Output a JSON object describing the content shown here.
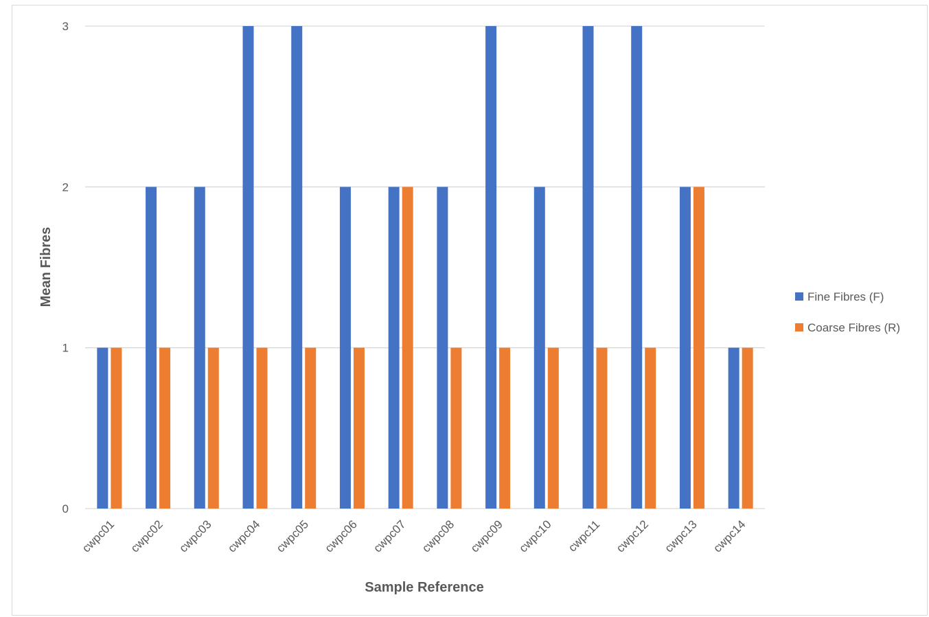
{
  "chart_data": {
    "type": "bar",
    "title": "",
    "xlabel": "Sample Reference",
    "ylabel": "Mean Fibres",
    "ylim": [
      0,
      3
    ],
    "yticks": [
      "0",
      "1",
      "2",
      "3"
    ],
    "grid": true,
    "legend_position": "right",
    "categories": [
      "cwpc01",
      "cwpc02",
      "cwpc03",
      "cwpc04",
      "cwpc05",
      "cwpc06",
      "cwpc07",
      "cwpc08",
      "cwpc09",
      "cwpc10",
      "cwpc11",
      "cwpc12",
      "cwpc13",
      "cwpc14"
    ],
    "series": [
      {
        "name": "Fine Fibres (F)",
        "color": "#4472c4",
        "values": [
          1,
          2,
          2,
          3,
          3,
          2,
          2,
          2,
          3,
          2,
          3,
          3,
          2,
          1
        ]
      },
      {
        "name": "Coarse Fibres (R)",
        "color": "#ed7d31",
        "values": [
          1,
          1,
          1,
          1,
          1,
          1,
          2,
          1,
          1,
          1,
          1,
          1,
          2,
          1
        ]
      }
    ]
  }
}
